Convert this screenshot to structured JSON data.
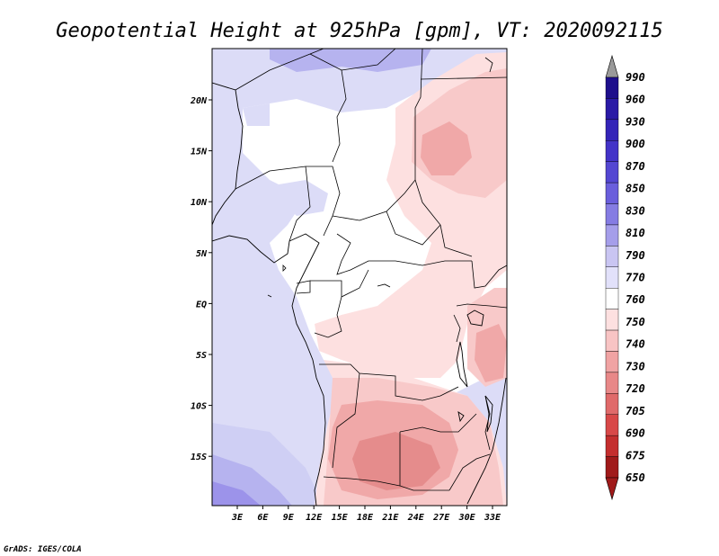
{
  "title": "Geopotential Height at 925hPa [gpm], VT: 2020092115",
  "credit": "GrADS: IGES/COLA",
  "x_ticks": [
    "3E",
    "6E",
    "9E",
    "12E",
    "15E",
    "18E",
    "21E",
    "24E",
    "27E",
    "30E",
    "33E"
  ],
  "y_ticks": [
    "20N",
    "15N",
    "10N",
    "5N",
    "EQ",
    "5S",
    "10S",
    "15S"
  ],
  "colorbar": {
    "labels": [
      "990",
      "960",
      "930",
      "900",
      "870",
      "850",
      "830",
      "810",
      "790",
      "770",
      "760",
      "750",
      "740",
      "730",
      "720",
      "705",
      "690",
      "675",
      "650"
    ],
    "colors": [
      "#9a9a9a",
      "#1e0f8c",
      "#2a1aa6",
      "#3424b8",
      "#4333c8",
      "#5447d2",
      "#6a5edc",
      "#857ce3",
      "#a59eea",
      "#c9c5f2",
      "#e2e1fa",
      "#ffffff",
      "#fde0e0",
      "#f8c4c4",
      "#f0a3a3",
      "#e88888",
      "#e06a6a",
      "#d84848",
      "#c42e2e",
      "#a01a1a",
      "#a01a1a"
    ]
  },
  "map_colors": {
    "ocean_890": "#dcdcf7",
    "ocean_770": "#cfcff4",
    "ocean_790": "#b6b3ef",
    "ocean_810": "#9c93ea",
    "land_white": "#ffffff",
    "pink_750": "#fde0e0",
    "pink_740": "#f8c9c9",
    "pink_730": "#f0a8a8",
    "pink_720": "#e58c8c"
  }
}
